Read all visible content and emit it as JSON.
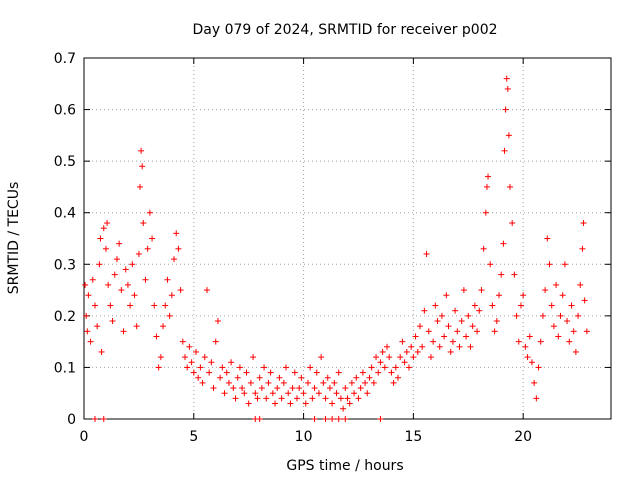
{
  "chart_data": {
    "type": "scatter",
    "title": "Day 079 of 2024, SRMTID for receiver p002",
    "xlabel": "GPS time / hours",
    "ylabel": "SRMTID / TECUs",
    "xlim": [
      0,
      24
    ],
    "ylim": [
      0,
      0.7
    ],
    "xticks": [
      0,
      5,
      10,
      15,
      20
    ],
    "yticks": [
      0,
      0.1,
      0.2,
      0.3,
      0.4,
      0.5,
      0.6,
      0.7
    ],
    "xtick_labels": [
      "0",
      "5",
      "10",
      "15",
      "20"
    ],
    "ytick_labels": [
      "0",
      "0.1",
      "0.2",
      "0.3",
      "0.4",
      "0.5",
      "0.6",
      "0.7"
    ],
    "grid": true,
    "marker": "+",
    "color": "#ff0000",
    "series": [
      {
        "name": "SRMTID",
        "points": [
          [
            0.05,
            0.26
          ],
          [
            0.1,
            0.2
          ],
          [
            0.15,
            0.17
          ],
          [
            0.2,
            0.24
          ],
          [
            0.3,
            0.15
          ],
          [
            0.4,
            0.27
          ],
          [
            0.5,
            0.22
          ],
          [
            0.6,
            0.18
          ],
          [
            0.7,
            0.3
          ],
          [
            0.75,
            0.35
          ],
          [
            0.8,
            0.13
          ],
          [
            0.9,
            0.37
          ],
          [
            1.0,
            0.33
          ],
          [
            1.05,
            0.38
          ],
          [
            1.1,
            0.26
          ],
          [
            1.2,
            0.22
          ],
          [
            1.3,
            0.19
          ],
          [
            1.4,
            0.28
          ],
          [
            1.5,
            0.31
          ],
          [
            1.6,
            0.34
          ],
          [
            1.7,
            0.25
          ],
          [
            1.8,
            0.17
          ],
          [
            1.9,
            0.29
          ],
          [
            2.0,
            0.26
          ],
          [
            2.1,
            0.22
          ],
          [
            2.2,
            0.3
          ],
          [
            2.3,
            0.24
          ],
          [
            2.4,
            0.18
          ],
          [
            2.5,
            0.32
          ],
          [
            2.55,
            0.45
          ],
          [
            2.6,
            0.52
          ],
          [
            2.65,
            0.49
          ],
          [
            2.7,
            0.38
          ],
          [
            2.8,
            0.27
          ],
          [
            2.9,
            0.33
          ],
          [
            3.0,
            0.4
          ],
          [
            3.1,
            0.35
          ],
          [
            3.2,
            0.22
          ],
          [
            3.3,
            0.16
          ],
          [
            3.4,
            0.1
          ],
          [
            3.5,
            0.12
          ],
          [
            3.6,
            0.18
          ],
          [
            3.7,
            0.22
          ],
          [
            3.8,
            0.27
          ],
          [
            3.9,
            0.2
          ],
          [
            4.0,
            0.24
          ],
          [
            4.1,
            0.31
          ],
          [
            4.2,
            0.36
          ],
          [
            4.3,
            0.33
          ],
          [
            4.4,
            0.25
          ],
          [
            4.5,
            0.15
          ],
          [
            4.6,
            0.12
          ],
          [
            4.7,
            0.1
          ],
          [
            4.8,
            0.14
          ],
          [
            4.9,
            0.11
          ],
          [
            5.0,
            0.09
          ],
          [
            5.1,
            0.13
          ],
          [
            5.2,
            0.08
          ],
          [
            5.3,
            0.1
          ],
          [
            5.4,
            0.07
          ],
          [
            5.5,
            0.12
          ],
          [
            5.6,
            0.25
          ],
          [
            5.7,
            0.09
          ],
          [
            5.8,
            0.11
          ],
          [
            5.9,
            0.06
          ],
          [
            6.0,
            0.15
          ],
          [
            6.1,
            0.19
          ],
          [
            6.2,
            0.08
          ],
          [
            6.3,
            0.1
          ],
          [
            6.4,
            0.05
          ],
          [
            6.5,
            0.09
          ],
          [
            6.6,
            0.07
          ],
          [
            6.7,
            0.11
          ],
          [
            6.8,
            0.06
          ],
          [
            6.9,
            0.04
          ],
          [
            7.0,
            0.08
          ],
          [
            7.1,
            0.1
          ],
          [
            7.2,
            0.06
          ],
          [
            7.3,
            0.05
          ],
          [
            7.4,
            0.09
          ],
          [
            7.5,
            0.03
          ],
          [
            7.6,
            0.07
          ],
          [
            7.7,
            0.12
          ],
          [
            7.8,
            0.05
          ],
          [
            7.9,
            0.04
          ],
          [
            8.0,
            0.08
          ],
          [
            8.1,
            0.06
          ],
          [
            8.2,
            0.1
          ],
          [
            8.3,
            0.04
          ],
          [
            8.4,
            0.07
          ],
          [
            8.5,
            0.09
          ],
          [
            8.6,
            0.05
          ],
          [
            8.7,
            0.03
          ],
          [
            8.8,
            0.06
          ],
          [
            8.9,
            0.08
          ],
          [
            9.0,
            0.04
          ],
          [
            9.1,
            0.07
          ],
          [
            9.2,
            0.1
          ],
          [
            9.3,
            0.05
          ],
          [
            9.4,
            0.03
          ],
          [
            9.5,
            0.06
          ],
          [
            9.6,
            0.09
          ],
          [
            9.7,
            0.04
          ],
          [
            9.8,
            0.06
          ],
          [
            9.9,
            0.08
          ],
          [
            10.0,
            0.05
          ],
          [
            10.1,
            0.03
          ],
          [
            10.2,
            0.07
          ],
          [
            10.3,
            0.1
          ],
          [
            10.4,
            0.04
          ],
          [
            10.5,
            0.06
          ],
          [
            10.6,
            0.09
          ],
          [
            10.7,
            0.05
          ],
          [
            10.8,
            0.12
          ],
          [
            10.9,
            0.07
          ],
          [
            11.0,
            0.04
          ],
          [
            11.1,
            0.08
          ],
          [
            11.2,
            0.06
          ],
          [
            11.3,
            0.03
          ],
          [
            11.4,
            0.07
          ],
          [
            11.5,
            0.05
          ],
          [
            11.6,
            0.09
          ],
          [
            11.7,
            0.04
          ],
          [
            11.8,
            0.02
          ],
          [
            11.9,
            0.06
          ],
          [
            12.0,
            0.04
          ],
          [
            12.1,
            0.03
          ],
          [
            12.2,
            0.07
          ],
          [
            12.3,
            0.05
          ],
          [
            12.4,
            0.08
          ],
          [
            12.5,
            0.04
          ],
          [
            12.6,
            0.06
          ],
          [
            12.7,
            0.09
          ],
          [
            12.8,
            0.07
          ],
          [
            12.9,
            0.05
          ],
          [
            13.0,
            0.08
          ],
          [
            13.1,
            0.1
          ],
          [
            13.2,
            0.07
          ],
          [
            13.3,
            0.12
          ],
          [
            13.4,
            0.09
          ],
          [
            13.5,
            0.11
          ],
          [
            13.6,
            0.13
          ],
          [
            13.7,
            0.1
          ],
          [
            13.8,
            0.14
          ],
          [
            13.9,
            0.12
          ],
          [
            14.0,
            0.09
          ],
          [
            14.1,
            0.07
          ],
          [
            14.2,
            0.1
          ],
          [
            14.3,
            0.08
          ],
          [
            14.4,
            0.12
          ],
          [
            14.5,
            0.15
          ],
          [
            14.6,
            0.11
          ],
          [
            14.7,
            0.13
          ],
          [
            14.8,
            0.1
          ],
          [
            14.9,
            0.14
          ],
          [
            15.0,
            0.12
          ],
          [
            15.1,
            0.16
          ],
          [
            15.2,
            0.13
          ],
          [
            15.3,
            0.18
          ],
          [
            15.4,
            0.14
          ],
          [
            15.5,
            0.21
          ],
          [
            15.6,
            0.32
          ],
          [
            15.7,
            0.17
          ],
          [
            15.8,
            0.12
          ],
          [
            15.9,
            0.15
          ],
          [
            16.0,
            0.22
          ],
          [
            16.1,
            0.19
          ],
          [
            16.2,
            0.14
          ],
          [
            16.3,
            0.2
          ],
          [
            16.4,
            0.16
          ],
          [
            16.5,
            0.24
          ],
          [
            16.6,
            0.18
          ],
          [
            16.7,
            0.13
          ],
          [
            16.8,
            0.15
          ],
          [
            16.9,
            0.21
          ],
          [
            17.0,
            0.17
          ],
          [
            17.1,
            0.14
          ],
          [
            17.2,
            0.19
          ],
          [
            17.3,
            0.25
          ],
          [
            17.4,
            0.16
          ],
          [
            17.5,
            0.2
          ],
          [
            17.6,
            0.14
          ],
          [
            17.7,
            0.18
          ],
          [
            17.8,
            0.22
          ],
          [
            17.9,
            0.17
          ],
          [
            18.0,
            0.21
          ],
          [
            18.1,
            0.25
          ],
          [
            18.2,
            0.33
          ],
          [
            18.3,
            0.4
          ],
          [
            18.35,
            0.45
          ],
          [
            18.4,
            0.47
          ],
          [
            18.5,
            0.3
          ],
          [
            18.6,
            0.22
          ],
          [
            18.7,
            0.17
          ],
          [
            18.8,
            0.19
          ],
          [
            18.9,
            0.24
          ],
          [
            19.0,
            0.28
          ],
          [
            19.1,
            0.34
          ],
          [
            19.15,
            0.52
          ],
          [
            19.2,
            0.6
          ],
          [
            19.25,
            0.66
          ],
          [
            19.3,
            0.64
          ],
          [
            19.35,
            0.55
          ],
          [
            19.4,
            0.45
          ],
          [
            19.5,
            0.38
          ],
          [
            19.6,
            0.28
          ],
          [
            19.7,
            0.2
          ],
          [
            19.8,
            0.15
          ],
          [
            19.9,
            0.22
          ],
          [
            20.0,
            0.24
          ],
          [
            20.1,
            0.14
          ],
          [
            20.2,
            0.12
          ],
          [
            20.3,
            0.16
          ],
          [
            20.4,
            0.11
          ],
          [
            20.5,
            0.07
          ],
          [
            20.6,
            0.04
          ],
          [
            20.7,
            0.1
          ],
          [
            20.8,
            0.15
          ],
          [
            20.9,
            0.2
          ],
          [
            21.0,
            0.25
          ],
          [
            21.1,
            0.35
          ],
          [
            21.2,
            0.3
          ],
          [
            21.3,
            0.22
          ],
          [
            21.4,
            0.18
          ],
          [
            21.5,
            0.26
          ],
          [
            21.6,
            0.16
          ],
          [
            21.7,
            0.2
          ],
          [
            21.8,
            0.24
          ],
          [
            21.9,
            0.3
          ],
          [
            22.0,
            0.19
          ],
          [
            22.1,
            0.15
          ],
          [
            22.2,
            0.22
          ],
          [
            22.3,
            0.17
          ],
          [
            22.4,
            0.13
          ],
          [
            22.5,
            0.2
          ],
          [
            22.6,
            0.26
          ],
          [
            22.7,
            0.33
          ],
          [
            22.75,
            0.38
          ],
          [
            22.8,
            0.23
          ],
          [
            22.9,
            0.17
          ],
          [
            0.5,
            0
          ],
          [
            0.9,
            0
          ],
          [
            7.8,
            0
          ],
          [
            8.0,
            0
          ],
          [
            10.5,
            0
          ],
          [
            11.0,
            0
          ],
          [
            11.3,
            0
          ],
          [
            11.6,
            0
          ],
          [
            11.9,
            0
          ],
          [
            13.5,
            0
          ]
        ]
      }
    ]
  }
}
